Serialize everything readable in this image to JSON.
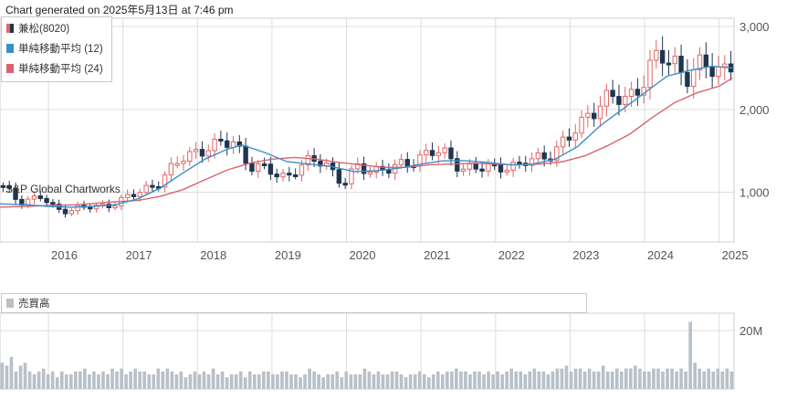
{
  "header": {
    "generated": "Chart generated on 2025年5月13日 at 7:46 pm"
  },
  "watermark": "S&P Global Chartworks",
  "legend": {
    "price_label": "兼松(8020)",
    "ma_short_label": "単純移動平均 (12)",
    "ma_long_label": "単純移動平均 (24)"
  },
  "volume_legend": {
    "label": "売買高"
  },
  "colors": {
    "up": "#e06666",
    "down": "#1f3550",
    "ma_short": "#3a8fc7",
    "ma_long": "#d9646e",
    "volume": "#b8c0c8",
    "grid": "#dddddd"
  },
  "chart_data": [
    {
      "type": "candlestick",
      "title": "兼松(8020)",
      "x_ticks": [
        "2016",
        "2017",
        "2018",
        "2019",
        "2020",
        "2021",
        "2022",
        "2023",
        "2024",
        "2025"
      ],
      "y_ticks": [
        1000,
        2000,
        3000
      ],
      "y_tick_labels": [
        "1,000",
        "2,000",
        "3,000"
      ],
      "ylim": [
        400,
        3100
      ],
      "xlim": [
        2015.35,
        2025.2
      ],
      "grid": true,
      "legend_position": "top-left",
      "series": [
        {
          "name": "兼松(8020)",
          "kind": "candle"
        },
        {
          "name": "単純移動平均 (12)",
          "kind": "line"
        },
        {
          "name": "単純移動平均 (24)",
          "kind": "line"
        }
      ],
      "anchors": [
        [
          2015.35,
          1080
        ],
        [
          2015.6,
          900
        ],
        [
          2015.9,
          940
        ],
        [
          2016.1,
          780
        ],
        [
          2016.4,
          810
        ],
        [
          2016.7,
          820
        ],
        [
          2016.95,
          900
        ],
        [
          2017.2,
          980
        ],
        [
          2017.5,
          1150
        ],
        [
          2017.8,
          1400
        ],
        [
          2018.0,
          1520
        ],
        [
          2018.25,
          1550
        ],
        [
          2018.5,
          1620
        ],
        [
          2018.7,
          1320
        ],
        [
          2018.95,
          1250
        ],
        [
          2019.2,
          1200
        ],
        [
          2019.45,
          1340
        ],
        [
          2019.7,
          1400
        ],
        [
          2019.95,
          1080
        ],
        [
          2020.15,
          1300
        ],
        [
          2020.4,
          1280
        ],
        [
          2020.6,
          1260
        ],
        [
          2020.85,
          1380
        ],
        [
          2021.1,
          1480
        ],
        [
          2021.35,
          1450
        ],
        [
          2021.55,
          1300
        ],
        [
          2021.8,
          1270
        ],
        [
          2022.1,
          1330
        ],
        [
          2022.3,
          1300
        ],
        [
          2022.55,
          1420
        ],
        [
          2022.8,
          1500
        ],
        [
          2023.0,
          1650
        ],
        [
          2023.25,
          1980
        ],
        [
          2023.5,
          2100
        ],
        [
          2023.75,
          2150
        ],
        [
          2024.0,
          2350
        ],
        [
          2024.2,
          2650
        ],
        [
          2024.4,
          2600
        ],
        [
          2024.6,
          2350
        ],
        [
          2024.8,
          2550
        ],
        [
          2025.0,
          2500
        ],
        [
          2025.18,
          2550
        ]
      ],
      "ma_short": [
        [
          2015.35,
          860
        ],
        [
          2015.7,
          850
        ],
        [
          2016.0,
          830
        ],
        [
          2016.3,
          820
        ],
        [
          2016.6,
          830
        ],
        [
          2016.9,
          850
        ],
        [
          2017.2,
          920
        ],
        [
          2017.5,
          1050
        ],
        [
          2017.8,
          1230
        ],
        [
          2018.1,
          1400
        ],
        [
          2018.4,
          1520
        ],
        [
          2018.6,
          1570
        ],
        [
          2018.9,
          1480
        ],
        [
          2019.2,
          1370
        ],
        [
          2019.5,
          1340
        ],
        [
          2019.8,
          1310
        ],
        [
          2020.1,
          1250
        ],
        [
          2020.4,
          1260
        ],
        [
          2020.7,
          1290
        ],
        [
          2021.0,
          1340
        ],
        [
          2021.3,
          1380
        ],
        [
          2021.6,
          1380
        ],
        [
          2021.9,
          1360
        ],
        [
          2022.2,
          1330
        ],
        [
          2022.5,
          1340
        ],
        [
          2022.8,
          1400
        ],
        [
          2023.1,
          1550
        ],
        [
          2023.4,
          1800
        ],
        [
          2023.7,
          2000
        ],
        [
          2024.0,
          2200
        ],
        [
          2024.3,
          2400
        ],
        [
          2024.6,
          2470
        ],
        [
          2024.9,
          2520
        ],
        [
          2025.18,
          2500
        ]
      ],
      "ma_long": [
        [
          2015.35,
          820
        ],
        [
          2015.7,
          830
        ],
        [
          2016.0,
          840
        ],
        [
          2016.4,
          850
        ],
        [
          2016.8,
          880
        ],
        [
          2017.2,
          900
        ],
        [
          2017.5,
          950
        ],
        [
          2017.8,
          1030
        ],
        [
          2018.1,
          1150
        ],
        [
          2018.4,
          1270
        ],
        [
          2018.7,
          1350
        ],
        [
          2019.0,
          1400
        ],
        [
          2019.3,
          1420
        ],
        [
          2019.6,
          1400
        ],
        [
          2019.9,
          1360
        ],
        [
          2020.2,
          1330
        ],
        [
          2020.5,
          1300
        ],
        [
          2020.8,
          1300
        ],
        [
          2021.1,
          1330
        ],
        [
          2021.4,
          1340
        ],
        [
          2021.7,
          1350
        ],
        [
          2022.0,
          1340
        ],
        [
          2022.3,
          1330
        ],
        [
          2022.6,
          1340
        ],
        [
          2022.9,
          1370
        ],
        [
          2023.2,
          1440
        ],
        [
          2023.5,
          1560
        ],
        [
          2023.8,
          1700
        ],
        [
          2024.1,
          1900
        ],
        [
          2024.4,
          2080
        ],
        [
          2024.7,
          2200
        ],
        [
          2025.0,
          2280
        ],
        [
          2025.18,
          2380
        ]
      ]
    },
    {
      "type": "bar",
      "title": "売買高",
      "series": [
        {
          "name": "売買高"
        }
      ],
      "y_ticks": [
        20
      ],
      "y_tick_labels": [
        "20M"
      ],
      "ylim": [
        0,
        26
      ],
      "values": [
        9,
        8,
        11,
        6,
        8,
        9,
        6,
        5,
        6,
        7,
        5,
        6,
        4,
        6,
        5,
        5,
        6,
        6,
        7,
        5,
        6,
        5,
        6,
        5,
        7,
        6,
        7,
        5,
        6,
        7,
        6,
        6,
        5,
        5,
        7,
        6,
        7,
        6,
        5,
        6,
        4,
        5,
        6,
        5,
        6,
        5,
        7,
        5,
        6,
        4,
        5,
        5,
        6,
        4,
        6,
        5,
        5,
        6,
        6,
        5,
        5,
        6,
        6,
        5,
        5,
        4,
        5,
        7,
        6,
        5,
        4,
        5,
        5,
        6,
        4,
        6,
        5,
        5,
        5,
        7,
        6,
        5,
        6,
        5,
        5,
        6,
        6,
        5,
        4,
        5,
        5,
        6,
        5,
        4,
        5,
        6,
        5,
        6,
        6,
        7,
        6,
        6,
        5,
        6,
        6,
        5,
        6,
        5,
        6,
        5,
        6,
        7,
        6,
        6,
        5,
        6,
        7,
        6,
        6,
        5,
        6,
        7,
        7,
        8,
        6,
        7,
        7,
        6,
        7,
        6,
        6,
        8,
        6,
        6,
        7,
        6,
        7,
        7,
        8,
        7,
        6,
        6,
        7,
        7,
        6,
        7,
        7,
        6,
        7,
        6,
        23,
        9,
        7,
        6,
        7,
        6,
        7,
        6,
        7,
        6
      ]
    }
  ]
}
